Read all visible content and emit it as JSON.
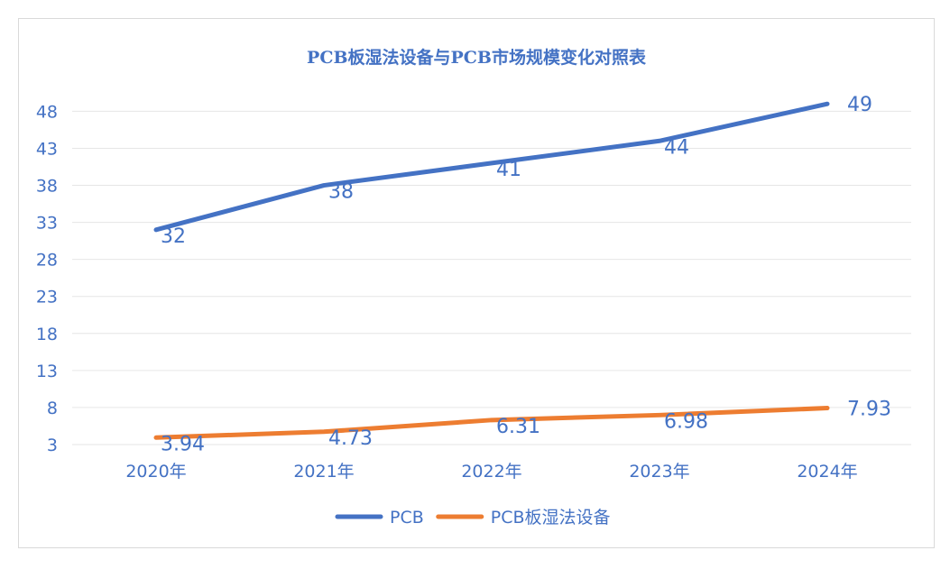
{
  "chart_data": {
    "type": "line",
    "title": "PCB板湿法设备与PCB市场规模变化对照表",
    "xlabel": "",
    "ylabel": "",
    "categories": [
      "2020年",
      "2021年",
      "2022年",
      "2023年",
      "2024年"
    ],
    "yticks": [
      3,
      8,
      13,
      18,
      23,
      28,
      33,
      38,
      43,
      48
    ],
    "ylim": [
      3,
      50
    ],
    "grid": true,
    "legend": "bottom",
    "series": [
      {
        "name": "PCB",
        "color": "#4472c4",
        "values": [
          32,
          38,
          41,
          44,
          49
        ],
        "labels": [
          "32",
          "38",
          "41",
          "44",
          "49"
        ]
      },
      {
        "name": "PCB板湿法设备",
        "color": "#ed7d31",
        "values": [
          3.94,
          4.73,
          6.31,
          6.98,
          7.93
        ],
        "labels": [
          "3.94",
          "4.73",
          "6.31",
          "6.98",
          "7.93"
        ]
      }
    ]
  }
}
